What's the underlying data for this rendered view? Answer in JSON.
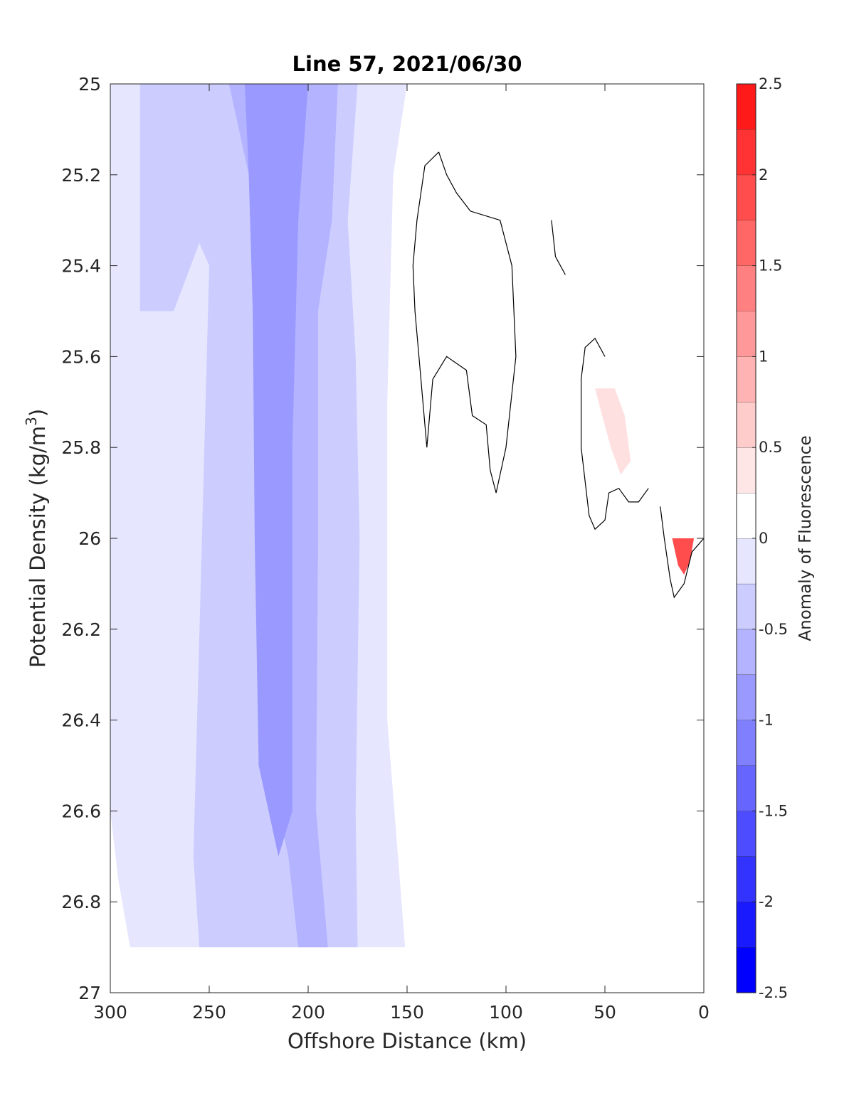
{
  "chart_data": {
    "type": "contour",
    "title": "Line 57, 2021/06/30",
    "xlabel": "Offshore Distance (km)",
    "ylabel_main": "Potential Density (kg/m",
    "ylabel_sup": "3",
    "ylabel_close": ")",
    "colorbar_label": "Anomaly of Fluorescence",
    "xlim": [
      300,
      0
    ],
    "ylim": [
      25,
      27
    ],
    "x_reversed": true,
    "y_reversed": true,
    "xticks": [
      300,
      250,
      200,
      150,
      100,
      50,
      0
    ],
    "xtick_labels": [
      "300",
      "250",
      "200",
      "150",
      "100",
      "50",
      "0"
    ],
    "yticks": [
      25,
      25.2,
      25.4,
      25.6,
      25.8,
      26,
      26.2,
      26.4,
      26.6,
      26.8,
      27
    ],
    "ytick_labels": [
      "25",
      "25.2",
      "25.4",
      "25.6",
      "25.8",
      "26",
      "26.2",
      "26.4",
      "26.6",
      "26.8",
      "27"
    ],
    "clim": [
      -2.5,
      2.5
    ],
    "colorbar_ticks": [
      2.5,
      2,
      1.5,
      1,
      0.5,
      0,
      -0.5,
      -1,
      -1.5,
      -2,
      -2.5
    ],
    "colorbar_tick_labels": [
      "2.5",
      "2",
      "1.5",
      "1",
      "0.5",
      "0",
      "-0.5",
      "-1",
      "-1.5",
      "-2",
      "-2.5"
    ],
    "levels": [
      -2.5,
      -2.25,
      -2,
      -1.75,
      -1.5,
      -1.25,
      -1,
      -0.75,
      -0.5,
      -0.25,
      0,
      0.25,
      0.5,
      0.75,
      1,
      1.25,
      1.5,
      1.75,
      2,
      2.25,
      2.5
    ],
    "level_colors": [
      "#0000ff",
      "#1a1aff",
      "#3333ff",
      "#4d4dff",
      "#6666ff",
      "#8080ff",
      "#9999ff",
      "#b3b3ff",
      "#ccccff",
      "#e6e6ff",
      "#ffffff",
      "#ffffff",
      "#ffe6e6",
      "#ffcccc",
      "#ffb3b3",
      "#ff9999",
      "#ff8080",
      "#ff6666",
      "#ff4d4d",
      "#ff3333",
      "#ff1a1a",
      "#ff0000"
    ],
    "contour_fill_regions": [
      {
        "level": -0.25,
        "color": "#e6e6ff",
        "points": [
          [
            300,
            25
          ],
          [
            150,
            25
          ],
          [
            157,
            25.2
          ],
          [
            160,
            25.7
          ],
          [
            160,
            26.4
          ],
          [
            151,
            26.9
          ],
          [
            290,
            26.9
          ],
          [
            296,
            26.75
          ],
          [
            300,
            26.6
          ]
        ]
      },
      {
        "level": -0.5,
        "color": "#ccccff",
        "points": [
          [
            285,
            25
          ],
          [
            175,
            25
          ],
          [
            180,
            25.3
          ],
          [
            176,
            25.6
          ],
          [
            174,
            26.0
          ],
          [
            176,
            26.6
          ],
          [
            175,
            26.9
          ],
          [
            255,
            26.9
          ],
          [
            258,
            26.7
          ],
          [
            250,
            25.4
          ],
          [
            255,
            25.35
          ],
          [
            268,
            25.5
          ],
          [
            285,
            25.5
          ]
        ]
      },
      {
        "level": -0.75,
        "color": "#b3b3ff",
        "points": [
          [
            240,
            25
          ],
          [
            185,
            25
          ],
          [
            188,
            25.3
          ],
          [
            195,
            25.5
          ],
          [
            195,
            26.0
          ],
          [
            196,
            26.6
          ],
          [
            190,
            26.9
          ],
          [
            205,
            26.9
          ],
          [
            210,
            26.7
          ],
          [
            220,
            26.5
          ],
          [
            226,
            26.0
          ],
          [
            228,
            25.5
          ],
          [
            230,
            25.2
          ]
        ]
      },
      {
        "level": -1.0,
        "color": "#9999ff",
        "points": [
          [
            232,
            25
          ],
          [
            200,
            25
          ],
          [
            205,
            25.3
          ],
          [
            208,
            25.8
          ],
          [
            208,
            26.6
          ],
          [
            215,
            26.7
          ],
          [
            225,
            26.5
          ],
          [
            227,
            26.0
          ],
          [
            228,
            25.5
          ],
          [
            230,
            25.2
          ]
        ]
      }
    ],
    "contour_line_zero": [
      [
        134,
        25.15
      ],
      [
        141,
        25.18
      ],
      [
        145,
        25.3
      ],
      [
        147,
        25.4
      ],
      [
        146,
        25.5
      ],
      [
        144,
        25.6
      ],
      [
        140,
        25.8
      ],
      [
        137,
        25.65
      ],
      [
        130,
        25.6
      ],
      [
        120,
        25.63
      ],
      [
        117,
        25.73
      ],
      [
        110,
        25.75
      ],
      [
        108,
        25.85
      ],
      [
        105,
        25.9
      ],
      [
        100,
        25.8
      ],
      [
        95,
        25.6
      ],
      [
        97,
        25.4
      ],
      [
        103,
        25.3
      ],
      [
        118,
        25.28
      ],
      [
        125,
        25.24
      ],
      [
        130,
        25.2
      ],
      [
        134,
        25.15
      ]
    ],
    "contour_line_zero_2": [
      [
        77,
        25.3
      ],
      [
        75,
        25.38
      ],
      [
        70,
        25.42
      ]
    ],
    "contour_line_zero_3": [
      [
        50,
        25.6
      ],
      [
        55,
        25.56
      ],
      [
        60,
        25.58
      ],
      [
        62,
        25.65
      ],
      [
        62,
        25.8
      ],
      [
        58,
        25.95
      ],
      [
        55,
        25.98
      ],
      [
        50,
        25.96
      ],
      [
        48,
        25.9
      ],
      [
        43,
        25.89
      ],
      [
        38,
        25.92
      ],
      [
        33,
        25.92
      ],
      [
        28,
        25.89
      ]
    ],
    "contour_line_zero_4": [
      [
        22,
        25.93
      ],
      [
        20,
        26.0
      ],
      [
        17,
        26.09
      ],
      [
        15,
        26.13
      ],
      [
        10,
        26.1
      ],
      [
        6,
        26.03
      ],
      [
        0,
        26.0
      ]
    ],
    "positive_patch": [
      [
        55,
        25.67
      ],
      [
        52,
        25.72
      ],
      [
        47,
        25.8
      ],
      [
        42,
        25.86
      ],
      [
        37,
        25.83
      ],
      [
        40,
        25.73
      ],
      [
        45,
        25.67
      ]
    ],
    "positive_patch_2": [
      [
        5,
        26.0
      ],
      [
        7,
        26.05
      ],
      [
        10,
        26.08
      ],
      [
        13,
        26.06
      ],
      [
        15,
        26.02
      ],
      [
        16,
        26.0
      ]
    ]
  }
}
